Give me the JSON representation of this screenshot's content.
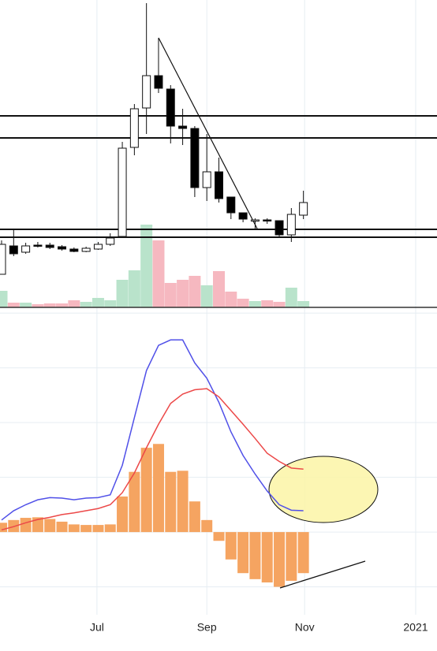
{
  "chart_data": [
    {
      "type": "candlestick",
      "x": [
        0,
        1,
        2,
        3,
        4,
        5,
        6,
        7,
        8,
        9,
        10,
        11,
        12,
        13,
        14,
        15,
        16,
        17,
        18,
        19,
        20,
        21,
        22,
        23,
        24,
        25
      ],
      "open": [
        42,
        78,
        70,
        79,
        79,
        77,
        74,
        71,
        74,
        80,
        90,
        203,
        253,
        294,
        277,
        230,
        227,
        152,
        172,
        140,
        120,
        111,
        111,
        110,
        92,
        117
      ],
      "high": [
        85,
        100,
        82,
        83,
        82,
        79,
        76,
        77,
        83,
        94,
        210,
        258,
        386,
        342,
        282,
        252,
        230,
        220,
        190,
        140,
        120,
        113,
        113,
        110,
        126,
        148
      ],
      "low": [
        42,
        65,
        68,
        76,
        74,
        72,
        70,
        70,
        73,
        78,
        88,
        193,
        220,
        272,
        208,
        206,
        140,
        135,
        133,
        112,
        108,
        98,
        106,
        90,
        83,
        112
      ],
      "close": [
        80,
        68,
        78,
        78,
        76,
        74,
        71,
        75,
        80,
        88,
        202,
        252,
        294,
        278,
        230,
        227,
        152,
        172,
        138,
        120,
        112,
        111,
        110,
        92,
        118,
        133
      ],
      "volume": [
        21,
        6,
        6,
        4,
        5,
        5,
        9,
        7,
        12,
        9,
        35,
        47,
        105,
        85,
        31,
        35,
        40,
        28,
        46,
        20,
        11,
        8,
        9,
        7,
        25,
        8
      ],
      "xlim": [
        0,
        36
      ],
      "ylim": [
        0,
        390
      ],
      "volume_lim": [
        0,
        390
      ],
      "up_color": "#ffffff",
      "down_color": "#000000",
      "volume_up_color": "#b9e3cb",
      "volume_down_color": "#f6b8c0"
    },
    {
      "type": "macd",
      "x": [
        0,
        1,
        2,
        3,
        4,
        5,
        6,
        7,
        8,
        9,
        10,
        11,
        12,
        13,
        14,
        15,
        16,
        17,
        18,
        19,
        20,
        21,
        22,
        23,
        24,
        25
      ],
      "histogram": [
        0.17,
        0.22,
        0.26,
        0.27,
        0.24,
        0.19,
        0.14,
        0.13,
        0.13,
        0.14,
        0.65,
        1.1,
        1.54,
        1.61,
        1.1,
        1.12,
        0.56,
        0.22,
        -0.16,
        -0.5,
        -0.75,
        -0.86,
        -0.92,
        -1.0,
        -0.89,
        -0.75
      ],
      "histogram_color": "#f5a461",
      "series": [
        {
          "color": "#5050e8",
          "values": [
            0.22,
            0.39,
            0.5,
            0.59,
            0.63,
            0.62,
            0.59,
            0.62,
            0.63,
            0.68,
            1.22,
            2.09,
            2.95,
            3.41,
            3.51,
            3.51,
            3.09,
            2.81,
            2.37,
            1.83,
            1.4,
            1.06,
            0.75,
            0.5,
            0.4,
            0.39
          ]
        },
        {
          "color": "#ec4848",
          "values": [
            0.04,
            0.1,
            0.17,
            0.23,
            0.27,
            0.32,
            0.35,
            0.39,
            0.43,
            0.5,
            0.72,
            1.08,
            1.54,
            1.97,
            2.35,
            2.52,
            2.6,
            2.62,
            2.47,
            2.22,
            1.97,
            1.71,
            1.44,
            1.29,
            1.17,
            1.15
          ]
        }
      ],
      "xlim": [
        0,
        36
      ],
      "ylim": [
        -1.51,
        4.09
      ],
      "yticks": [
        -1,
        0,
        1,
        2,
        3,
        4
      ],
      "xticks": [
        {
          "value": 7.9,
          "label": "Jul"
        },
        {
          "value": 17,
          "label": "Sep"
        },
        {
          "value": 25.1,
          "label": "Nov"
        },
        {
          "value": 34.3,
          "label": "2021"
        }
      ],
      "grid": true
    }
  ]
}
